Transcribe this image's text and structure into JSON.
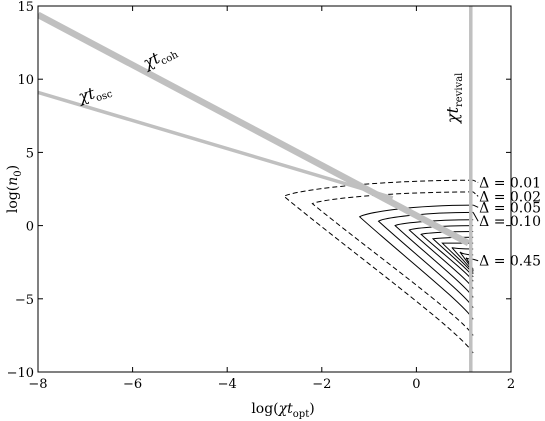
{
  "chart_data": {
    "type": "line",
    "xlim": [
      -8,
      2
    ],
    "ylim": [
      -10,
      15
    ],
    "x_ticks": [
      -8,
      -6,
      -4,
      -2,
      0,
      2
    ],
    "y_ticks": [
      -10,
      -5,
      0,
      5,
      10,
      15
    ],
    "x_tick_labels": [
      "−8",
      "−6",
      "−4",
      "−2",
      "0",
      "2"
    ],
    "y_tick_labels": [
      "−10",
      "−5",
      "0",
      "5",
      "10",
      "15"
    ],
    "xlabel": {
      "pre": "log(",
      "main": "χt",
      "sub": "opt",
      "post": ")"
    },
    "ylabel": {
      "pre": "log(",
      "main": "n",
      "sub": "0",
      "post": ")"
    },
    "grid": false,
    "gray_lines": [
      {
        "label_main": "χt",
        "label_sub": "coh",
        "label_pos": [
          -5.7,
          10.7
        ],
        "label_angle": -28,
        "color": "#c0c0c0",
        "width": 6.5,
        "points": [
          [
            -8,
            14.4
          ],
          [
            1.1,
            -1.2
          ]
        ]
      },
      {
        "label_main": "χt",
        "label_sub": "osc",
        "label_pos": [
          -7.1,
          8.4
        ],
        "label_angle": -18,
        "color": "#c0c0c0",
        "width": 3.5,
        "points": [
          [
            -8,
            9.1
          ],
          [
            -0.5,
            1.9
          ]
        ]
      },
      {
        "label_main": "χt",
        "label_sub": "revival",
        "label_pos": [
          0.88,
          7.0
        ],
        "label_angle": -90,
        "color": "#c0c0c0",
        "width": 3.5,
        "points": [
          [
            1.15,
            15
          ],
          [
            1.15,
            -10
          ]
        ]
      }
    ],
    "delta_contours": [
      {
        "delta": "0.01",
        "label": "Δ = 0.01",
        "style": "dashed",
        "tip": [
          -2.8,
          2.0
        ],
        "top": 3.1,
        "bottom": -8.7,
        "label_y": 2.95
      },
      {
        "delta": "0.02",
        "label": "Δ = 0.02",
        "style": "dashed",
        "tip": [
          -2.2,
          1.5
        ],
        "top": 2.3,
        "bottom": -7.5,
        "label_y": 2.0
      },
      {
        "delta": "0.05",
        "label": "Δ = 0.05",
        "style": "solid",
        "tip": [
          -1.2,
          0.6
        ],
        "top": 1.4,
        "bottom": -6.4,
        "label_y": 1.25
      },
      {
        "delta": "0.10",
        "label": "Δ = 0.10",
        "style": "solid",
        "tip": [
          -0.8,
          0.3
        ],
        "top": 0.9,
        "bottom": -5.6,
        "label_y": 0.3
      },
      {
        "delta": "",
        "label": "",
        "style": "solid",
        "tip": [
          -0.45,
          0.0
        ],
        "top": 0.4,
        "bottom": -4.9,
        "label_y": 0
      },
      {
        "delta": "",
        "label": "",
        "style": "solid",
        "tip": [
          -0.15,
          -0.3
        ],
        "top": 0.0,
        "bottom": -4.3,
        "label_y": 0
      },
      {
        "delta": "",
        "label": "",
        "style": "solid",
        "tip": [
          0.1,
          -0.6
        ],
        "top": -0.4,
        "bottom": -3.8,
        "label_y": 0
      },
      {
        "delta": "",
        "label": "",
        "style": "solid",
        "tip": [
          0.35,
          -0.9
        ],
        "top": -0.8,
        "bottom": -3.5,
        "label_y": 0
      },
      {
        "delta": "",
        "label": "",
        "style": "solid",
        "tip": [
          0.55,
          -1.2
        ],
        "top": -1.2,
        "bottom": -3.3,
        "label_y": 0
      },
      {
        "delta": "",
        "label": "",
        "style": "solid",
        "tip": [
          0.75,
          -1.5
        ],
        "top": -1.6,
        "bottom": -3.2,
        "label_y": 0
      },
      {
        "delta": "",
        "label": "",
        "style": "solid",
        "tip": [
          0.92,
          -1.8
        ],
        "top": -2.0,
        "bottom": -3.1,
        "label_y": 0
      },
      {
        "delta": "0.45",
        "label": "Δ = 0.45",
        "style": "solid",
        "tip": [
          1.05,
          -2.2
        ],
        "top": -2.3,
        "bottom": -3.0,
        "label_y": -2.4
      }
    ],
    "contour_right_x": 1.2
  }
}
